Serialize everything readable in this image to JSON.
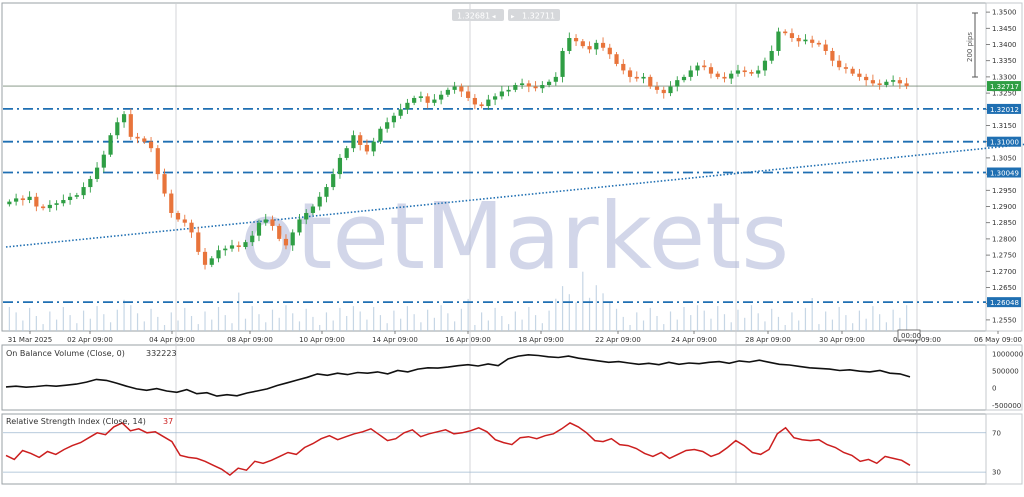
{
  "watermark": "otetMarkets",
  "header": {
    "bid": "1.32681",
    "ask": "1.32711",
    "range_label": "200 pips"
  },
  "colors": {
    "bull": "#2f9e44",
    "bear": "#e8743b",
    "level_line": "#1f6fb2",
    "trend_line": "#1f6fb2",
    "obv_line": "#111111",
    "rsi_line": "#cc1f1f",
    "label_bg": "#1f6fb2",
    "price_label_bg": "#2f9e44"
  },
  "chart_data": [
    {
      "type": "candlestick",
      "title": "",
      "ylim": [
        1.2525,
        1.3525
      ],
      "y_ticks": [
        "1.3500",
        "1.3450",
        "1.3400",
        "1.3350",
        "1.3300",
        "1.3250",
        "1.3200",
        "1.3150",
        "1.3100",
        "1.3050",
        "1.3000",
        "1.2950",
        "1.2900",
        "1.2850",
        "1.2800",
        "1.2750",
        "1.2700",
        "1.2650",
        "1.2600",
        "1.2550"
      ],
      "x_ticks": [
        "31 Mar 2025",
        "02 Apr 09:00",
        "04 Apr 09:00",
        "08 Apr 09:00",
        "10 Apr 09:00",
        "14 Apr 09:00",
        "16 Apr 09:00",
        "18 Apr 09:00",
        "22 Apr 09:00",
        "24 Apr 09:00",
        "28 Apr 09:00",
        "30 Apr 09:00",
        "02 May 09:00",
        "06 May 09:00"
      ],
      "cursor_time": "00:00",
      "current_price": "1.32717",
      "levels": [
        {
          "value": 1.32012,
          "label": "1.32012"
        },
        {
          "value": 1.31,
          "label": "1.31000"
        },
        {
          "value": 1.30049,
          "label": "1.30049"
        },
        {
          "value": 1.26048,
          "label": "1.26048"
        }
      ],
      "trendline": {
        "start": [
          0,
          1.2775
        ],
        "end": [
          155,
          1.31
        ]
      },
      "closes": [
        1.2915,
        1.2925,
        1.292,
        1.293,
        1.29,
        1.2895,
        1.2905,
        1.291,
        1.292,
        1.293,
        1.2935,
        1.296,
        1.2985,
        1.302,
        1.306,
        1.312,
        1.316,
        1.3185,
        1.3115,
        1.311,
        1.31,
        1.308,
        1.3,
        1.294,
        1.288,
        1.286,
        1.285,
        1.282,
        1.276,
        1.272,
        1.274,
        1.2765,
        1.277,
        1.278,
        1.2775,
        1.279,
        1.281,
        1.285,
        1.286,
        1.284,
        1.28,
        1.278,
        1.282,
        1.286,
        1.288,
        1.29,
        1.293,
        1.296,
        1.3,
        1.305,
        1.308,
        1.312,
        1.309,
        1.307,
        1.31,
        1.314,
        1.316,
        1.318,
        1.32,
        1.322,
        1.3235,
        1.324,
        1.322,
        1.323,
        1.3245,
        1.326,
        1.327,
        1.3255,
        1.3235,
        1.3215,
        1.321,
        1.323,
        1.324,
        1.3255,
        1.326,
        1.3275,
        1.328,
        1.327,
        1.3265,
        1.3275,
        1.3285,
        1.33,
        1.338,
        1.342,
        1.341,
        1.3395,
        1.3385,
        1.3405,
        1.339,
        1.337,
        1.334,
        1.332,
        1.33,
        1.3295,
        1.33,
        1.327,
        1.326,
        1.325,
        1.327,
        1.329,
        1.33,
        1.332,
        1.3335,
        1.333,
        1.331,
        1.33,
        1.3295,
        1.331,
        1.332,
        1.3315,
        1.331,
        1.332,
        1.335,
        1.338,
        1.344,
        1.3435,
        1.342,
        1.341,
        1.3415,
        1.3405,
        1.34,
        1.338,
        1.335,
        1.333,
        1.3325,
        1.331,
        1.33,
        1.329,
        1.328,
        1.3275,
        1.3285,
        1.329,
        1.328,
        1.3272
      ]
    },
    {
      "type": "line",
      "title": "On Balance Volume (Close, 0)",
      "last_value": "332223",
      "ylim": [
        -520000,
        1120000
      ],
      "y_ticks": [
        1000000,
        500000,
        0,
        -500000
      ],
      "y_tick_labels": [
        "1000000",
        "500000",
        "0",
        "-500000"
      ],
      "values": [
        40000,
        60000,
        30000,
        50000,
        80000,
        60000,
        90000,
        120000,
        180000,
        260000,
        230000,
        150000,
        60000,
        -20000,
        -60000,
        -10000,
        -80000,
        -120000,
        -40000,
        -160000,
        -130000,
        -230000,
        -190000,
        -220000,
        -140000,
        -80000,
        -20000,
        80000,
        160000,
        240000,
        320000,
        420000,
        380000,
        440000,
        400000,
        460000,
        440000,
        480000,
        420000,
        520000,
        480000,
        560000,
        600000,
        590000,
        620000,
        660000,
        690000,
        650000,
        710000,
        660000,
        860000,
        940000,
        980000,
        960000,
        920000,
        900000,
        940000,
        880000,
        840000,
        800000,
        760000,
        780000,
        740000,
        700000,
        730000,
        690000,
        760000,
        700000,
        740000,
        720000,
        760000,
        780000,
        730000,
        800000,
        770000,
        820000,
        760000,
        700000,
        680000,
        640000,
        600000,
        580000,
        560000,
        520000,
        540000,
        500000,
        480000,
        520000,
        440000,
        420000,
        332223
      ]
    },
    {
      "type": "line",
      "title": "Relative Strength Index (Close, 14)",
      "last_value": "37",
      "ylim": [
        20,
        85
      ],
      "y_ticks": [
        70,
        30
      ],
      "y_tick_labels": [
        "70",
        "30"
      ],
      "values": [
        47,
        43,
        52,
        49,
        45,
        51,
        48,
        53,
        57,
        60,
        65,
        70,
        68,
        76,
        80,
        72,
        74,
        70,
        71,
        66,
        61,
        47,
        45,
        44,
        41,
        37,
        33,
        27,
        34,
        32,
        41,
        39,
        42,
        46,
        50,
        48,
        55,
        59,
        64,
        67,
        63,
        66,
        69,
        71,
        74,
        68,
        62,
        64,
        70,
        73,
        66,
        69,
        71,
        73,
        69,
        70,
        72,
        75,
        71,
        63,
        60,
        58,
        65,
        66,
        64,
        67,
        69,
        74,
        80,
        76,
        70,
        62,
        61,
        64,
        58,
        57,
        54,
        49,
        46,
        50,
        44,
        48,
        52,
        53,
        51,
        46,
        49,
        55,
        62,
        57,
        50,
        48,
        53,
        69,
        75,
        65,
        63,
        62,
        63,
        58,
        55,
        50,
        47,
        41,
        43,
        39,
        46,
        44,
        42,
        37
      ]
    }
  ]
}
